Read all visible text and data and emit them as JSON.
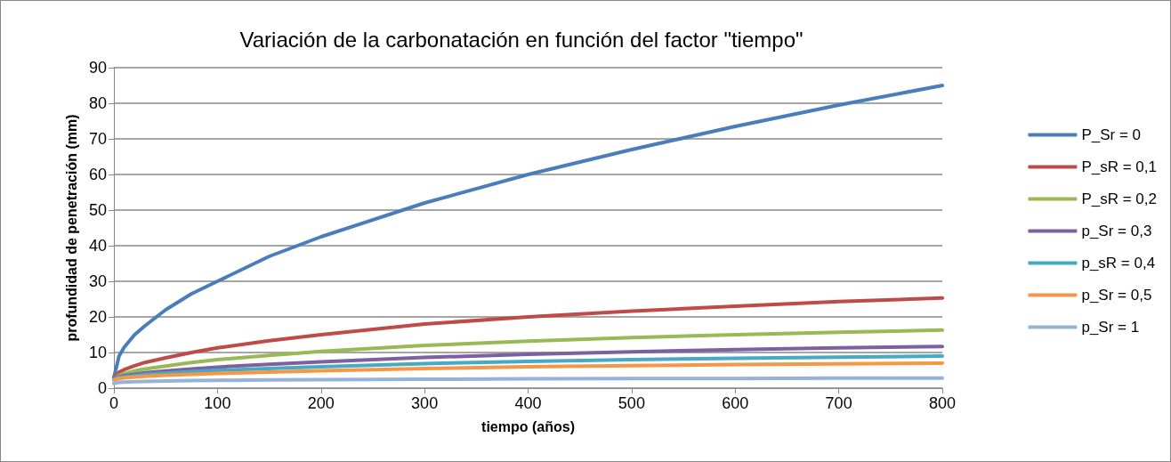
{
  "chart_data": {
    "type": "line",
    "title": "Variación de la carbonatación en función del factor \"tiempo\"",
    "xlabel": "tiempo (años)",
    "ylabel": "profundidad de penetración (mm)",
    "x": [
      0,
      5,
      10,
      20,
      30,
      50,
      75,
      100,
      150,
      200,
      300,
      400,
      500,
      600,
      700,
      800
    ],
    "series": [
      {
        "name": "P_Sr = 0",
        "color": "#4a7ebb",
        "values": [
          3,
          9,
          11.5,
          15,
          17.5,
          22,
          26.5,
          30,
          37,
          42.5,
          52,
          60,
          67,
          73.5,
          79.5,
          85
        ]
      },
      {
        "name": "P_sR = 0,1",
        "color": "#be4b48",
        "values": [
          2.5,
          4.5,
          5.2,
          6.3,
          7.2,
          8.5,
          10,
          11.3,
          13.3,
          15,
          18,
          20,
          21.6,
          23,
          24.3,
          25.3
        ]
      },
      {
        "name": "P_sR = 0,2",
        "color": "#98b954",
        "values": [
          2.5,
          3.6,
          4.1,
          4.8,
          5.4,
          6.2,
          7.2,
          8,
          9.2,
          10.3,
          12,
          13.2,
          14.2,
          15,
          15.7,
          16.3
        ]
      },
      {
        "name": "p_Sr = 0,3",
        "color": "#7d60a0",
        "values": [
          2.5,
          3.2,
          3.5,
          3.9,
          4.3,
          4.8,
          5.4,
          5.9,
          6.7,
          7.4,
          8.6,
          9.5,
          10.2,
          10.8,
          11.3,
          11.7
        ]
      },
      {
        "name": "p_sR = 0,4",
        "color": "#46aac5",
        "values": [
          2.4,
          3,
          3.2,
          3.5,
          3.8,
          4.2,
          4.6,
          5,
          5.5,
          6,
          6.9,
          7.5,
          8,
          8.4,
          8.7,
          9
        ]
      },
      {
        "name": "p_Sr = 0,5",
        "color": "#f79646",
        "values": [
          2.3,
          2.7,
          2.9,
          3.1,
          3.3,
          3.6,
          3.9,
          4.1,
          4.5,
          4.9,
          5.5,
          6,
          6.3,
          6.6,
          6.8,
          7
        ]
      },
      {
        "name": "p_Sr = 1",
        "color": "#95b3d7",
        "values": [
          1.3,
          1.6,
          1.7,
          1.8,
          1.9,
          2,
          2.1,
          2.2,
          2.3,
          2.4,
          2.5,
          2.6,
          2.7,
          2.7,
          2.8,
          2.8
        ]
      }
    ],
    "xlim": [
      0,
      800
    ],
    "xticks": [
      0,
      100,
      200,
      300,
      400,
      500,
      600,
      700,
      800
    ],
    "ylim": [
      0,
      90
    ],
    "yticks": [
      0,
      10,
      20,
      30,
      40,
      50,
      60,
      70,
      80,
      90
    ],
    "grid": "y",
    "legend": "right",
    "marker": "none",
    "line_style": "solid"
  }
}
